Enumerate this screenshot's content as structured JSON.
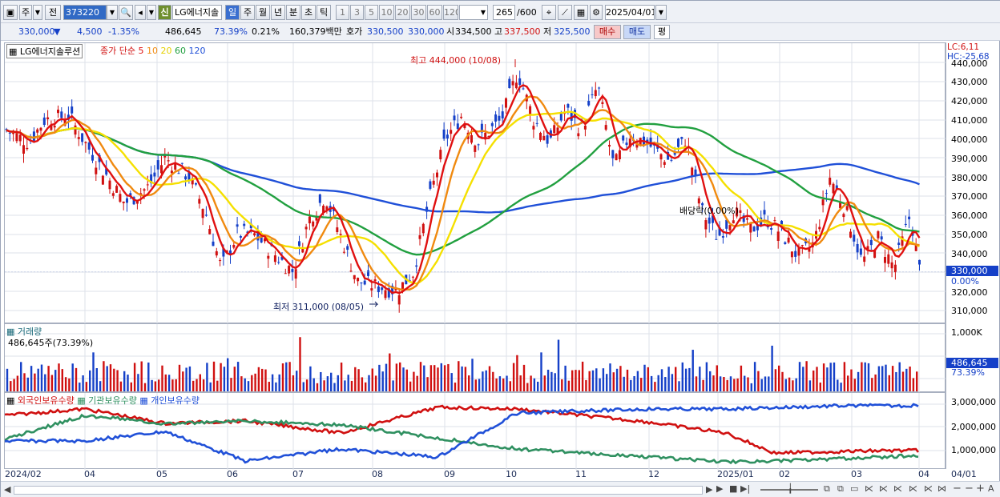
{
  "toolbar": {
    "market": "주",
    "prev": "전",
    "code": "373220",
    "stock_name": "LG에너지솔",
    "shin": "신",
    "periods": [
      "일",
      "주",
      "월",
      "년",
      "분",
      "초",
      "틱"
    ],
    "active_period": "일",
    "counts": [
      "1",
      "3",
      "5",
      "10",
      "20",
      "30",
      "60",
      "120"
    ],
    "view_count": "265",
    "view_max": "/600",
    "date": "2025/04/01"
  },
  "quote": {
    "price": "330,000",
    "change_arrow": "▼",
    "change": "4,500",
    "change_pct": "-1.35%",
    "volume": "486,645",
    "vol_ratio": "73.39%",
    "turnover_ratio": "0.21%",
    "amount": "160,379백만",
    "bid_label": "호가",
    "bid": "330,500",
    "ask": "330,000",
    "open_label": "시",
    "open": "334,500",
    "high_label": "고",
    "high": "337,500",
    "low_label": "저",
    "low": "325,500",
    "buy_label": "매수",
    "sell_label": "매도",
    "avg_label": "평"
  },
  "price_pane": {
    "title": "LG에너지솔루션",
    "legend_prefix": "종가 단순",
    "ma_labels": [
      "5",
      "10",
      "20",
      "60",
      "120"
    ],
    "lc": "LC:6,11",
    "hc": "HC:-25,68",
    "max_label": "최고 444,000 (10/08)",
    "min_label": "최저 311,000 (08/05)",
    "dividend_label": "배당락(0.00%)",
    "current_tag": "330,000",
    "current_pct": "0.00%",
    "yticks": [
      "440,000",
      "430,000",
      "420,000",
      "410,000",
      "400,000",
      "390,000",
      "380,000",
      "370,000",
      "360,000",
      "350,000",
      "340,000",
      "320,000",
      "310,000"
    ]
  },
  "volume_pane": {
    "title": "거래량",
    "value_label": "486,645주(73.39%)",
    "ytick": "1,000K",
    "current_tag": "486,645",
    "current_pct": "73.39%"
  },
  "holding_pane": {
    "legend": [
      "외국인보유수량",
      "기관보유수량",
      "개인보유수량"
    ],
    "yticks": [
      "3,000,000",
      "2,000,000",
      "1,000,000"
    ]
  },
  "xaxis": {
    "labels": [
      "2024/02",
      "04",
      "05",
      "06",
      "07",
      "08",
      "09",
      "10",
      "11",
      "12",
      "2025/01",
      "02",
      "03",
      "04",
      "04/01"
    ]
  },
  "colors": {
    "up": "#d01010",
    "down": "#1540c8",
    "ma5": "#e01010",
    "ma10": "#f08a10",
    "ma20": "#f5e000",
    "ma60": "#22a040",
    "ma120": "#2050d8",
    "foreign": "#d01010",
    "institution": "#2f9060",
    "individual": "#2050d8"
  }
}
